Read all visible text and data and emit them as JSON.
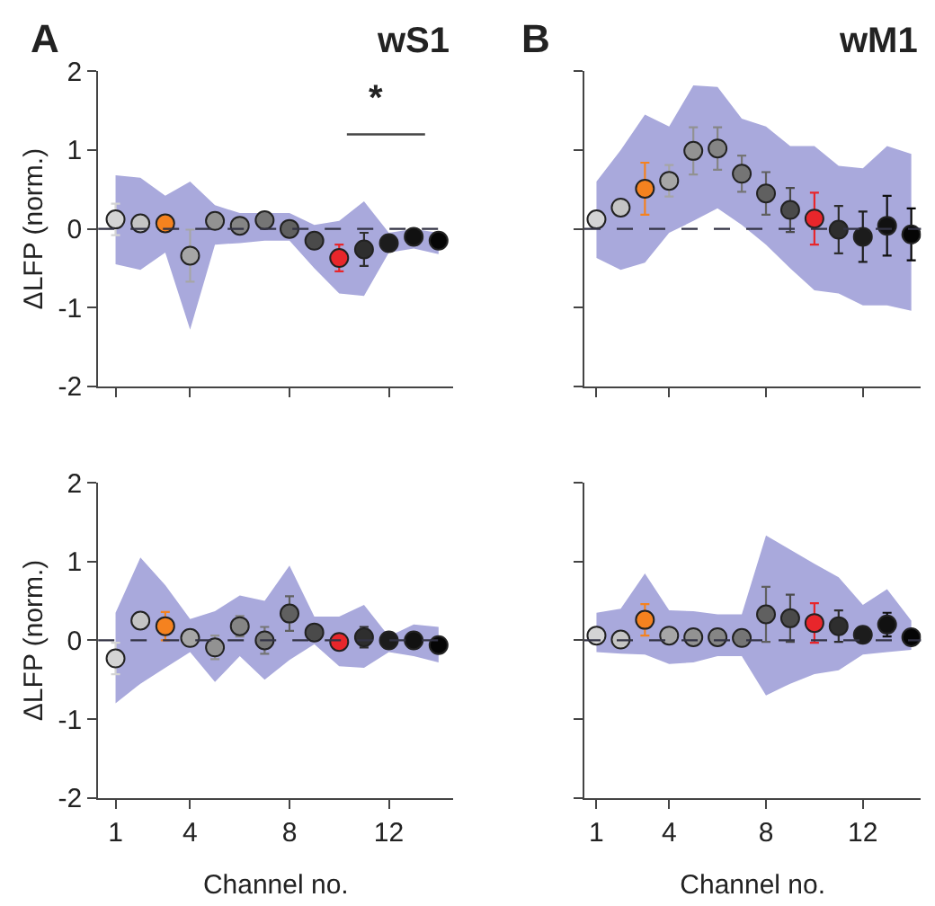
{
  "chart_data": [
    {
      "type": "scatter",
      "title": "wS1",
      "annotations": [
        "A",
        "*"
      ],
      "ylabel": "ΔLFP (norm.)",
      "x": [
        1,
        2,
        3,
        4,
        5,
        6,
        7,
        8,
        9,
        10,
        11,
        12,
        13,
        14
      ],
      "xlim": [
        0.3,
        14.6
      ],
      "xticks": [
        1,
        4,
        8,
        12
      ],
      "ylim": [
        -2,
        2
      ],
      "yticks": [
        -2,
        -1,
        0,
        1,
        2
      ],
      "tick_labels": "y",
      "marker": "circle",
      "ref_lines": [
        {
          "axis": "y",
          "value": 0,
          "line_style": "dashed",
          "color": "#333344"
        }
      ],
      "series": [
        {
          "color": "#a9a9dc",
          "colors": [
            "#d4d4d4",
            "#c4c4c4",
            "#f5821f",
            "#a6a6a6",
            "#929292",
            "#858585",
            "#757575",
            "#606060",
            "#4a4a4a",
            "#e8262b",
            "#2e2e2e",
            "#1c1c1c",
            "#111111",
            "#050505"
          ],
          "values": [
            0.12,
            0.07,
            0.07,
            -0.34,
            0.1,
            0.04,
            0.11,
            0.0,
            -0.15,
            -0.37,
            -0.26,
            -0.18,
            -0.1,
            -0.15
          ],
          "errors": [
            0.2,
            null,
            0.1,
            0.33,
            null,
            null,
            null,
            null,
            null,
            0.17,
            0.21,
            null,
            null,
            null
          ],
          "lower": [
            -0.45,
            -0.52,
            -0.3,
            -1.28,
            -0.2,
            -0.18,
            -0.15,
            -0.15,
            -0.5,
            -0.82,
            -0.85,
            -0.3,
            -0.25,
            -0.32
          ],
          "upper": [
            0.68,
            0.65,
            0.42,
            0.6,
            0.3,
            0.2,
            0.2,
            0.2,
            0.05,
            0.1,
            0.35,
            -0.05,
            0.0,
            -0.05
          ]
        }
      ]
    },
    {
      "type": "scatter",
      "title": "wM1",
      "annotations": [
        "B"
      ],
      "x": [
        1,
        2,
        3,
        4,
        5,
        6,
        7,
        8,
        9,
        10,
        11,
        12,
        13,
        14
      ],
      "xlim": [
        0.5,
        14.4
      ],
      "xticks": [
        1,
        4,
        8,
        12
      ],
      "ylim": [
        -2,
        2
      ],
      "yticks": [
        {
          "value": -2,
          "label": null
        },
        {
          "value": -1,
          "label": null
        },
        {
          "value": 0,
          "label": null
        },
        {
          "value": 1,
          "label": null
        },
        {
          "value": 2,
          "label": null
        }
      ],
      "tick_labels": false,
      "marker": "circle",
      "ref_lines": [
        {
          "axis": "y",
          "value": 0,
          "line_style": "dashed",
          "color": "#333344"
        }
      ],
      "series": [
        {
          "color": "#a9a9dc",
          "colors": [
            "#d4d4d4",
            "#c4c4c4",
            "#f5821f",
            "#a6a6a6",
            "#929292",
            "#858585",
            "#757575",
            "#606060",
            "#4a4a4a",
            "#e8262b",
            "#2e2e2e",
            "#1c1c1c",
            "#111111",
            "#050505"
          ],
          "values": [
            0.12,
            0.27,
            0.51,
            0.61,
            0.99,
            1.02,
            0.7,
            0.45,
            0.24,
            0.13,
            -0.01,
            -0.1,
            0.04,
            -0.07
          ],
          "errors": [
            0.1,
            0.1,
            0.33,
            0.2,
            0.3,
            0.27,
            0.23,
            0.27,
            0.28,
            0.33,
            0.3,
            0.32,
            0.38,
            0.33
          ],
          "lower": [
            -0.37,
            -0.52,
            -0.43,
            -0.05,
            0.1,
            0.26,
            0.05,
            -0.2,
            -0.5,
            -0.78,
            -0.82,
            -0.97,
            -0.97,
            -1.04
          ],
          "upper": [
            0.6,
            1.0,
            1.45,
            1.3,
            1.82,
            1.8,
            1.4,
            1.3,
            1.05,
            1.05,
            0.8,
            0.77,
            1.05,
            0.95
          ]
        }
      ]
    },
    {
      "type": "scatter",
      "xlabel": "Channel no.",
      "ylabel": "ΔLFP (norm.)",
      "x": [
        1,
        2,
        3,
        4,
        5,
        6,
        7,
        8,
        9,
        10,
        11,
        12,
        13,
        14
      ],
      "xlim": [
        0.3,
        14.6
      ],
      "xticks": [
        1,
        4,
        8,
        12
      ],
      "ylim": [
        -2,
        2
      ],
      "yticks": [
        -2,
        -1,
        0,
        1,
        2
      ],
      "marker": "circle",
      "ref_lines": [
        {
          "axis": "y",
          "value": 0,
          "line_style": "dashed",
          "color": "#333344"
        }
      ],
      "series": [
        {
          "color": "#a9a9dc",
          "colors": [
            "#d4d4d4",
            "#c4c4c4",
            "#f5821f",
            "#a6a6a6",
            "#929292",
            "#858585",
            "#757575",
            "#606060",
            "#4a4a4a",
            "#e8262b",
            "#2e2e2e",
            "#1c1c1c",
            "#111111",
            "#050505"
          ],
          "values": [
            -0.23,
            0.25,
            0.18,
            0.03,
            -0.09,
            0.18,
            0.0,
            0.34,
            0.1,
            -0.02,
            0.04,
            0.0,
            0.0,
            -0.06
          ],
          "errors": [
            0.2,
            null,
            0.18,
            null,
            0.15,
            0.13,
            0.17,
            0.22,
            null,
            0.1,
            0.13,
            null,
            null,
            null
          ],
          "lower": [
            -0.8,
            -0.55,
            -0.35,
            -0.15,
            -0.53,
            -0.2,
            -0.5,
            -0.25,
            -0.05,
            -0.33,
            -0.35,
            -0.15,
            -0.2,
            -0.28
          ],
          "upper": [
            0.35,
            1.05,
            0.7,
            0.27,
            0.37,
            0.57,
            0.5,
            0.95,
            0.3,
            0.3,
            0.45,
            0.05,
            0.2,
            0.17
          ]
        }
      ]
    },
    {
      "type": "scatter",
      "xlabel": "Channel no.",
      "x": [
        1,
        2,
        3,
        4,
        5,
        6,
        7,
        8,
        9,
        10,
        11,
        12,
        13,
        14
      ],
      "xlim": [
        0.5,
        14.4
      ],
      "xticks": [
        1,
        4,
        8,
        12
      ],
      "ylim": [
        -2,
        2
      ],
      "yticks": [
        {
          "value": -2,
          "label": null
        },
        {
          "value": -1,
          "label": null
        },
        {
          "value": 0,
          "label": null
        },
        {
          "value": 1,
          "label": null
        },
        {
          "value": 2,
          "label": null
        }
      ],
      "tick_labels": "x",
      "marker": "circle",
      "ref_lines": [
        {
          "axis": "y",
          "value": 0,
          "line_style": "dashed",
          "color": "#333344"
        }
      ],
      "series": [
        {
          "color": "#a9a9dc",
          "colors": [
            "#d4d4d4",
            "#c4c4c4",
            "#f5821f",
            "#a6a6a6",
            "#929292",
            "#858585",
            "#757575",
            "#606060",
            "#4a4a4a",
            "#e8262b",
            "#2e2e2e",
            "#1c1c1c",
            "#111111",
            "#050505"
          ],
          "values": [
            0.06,
            0.01,
            0.26,
            0.06,
            0.04,
            0.04,
            0.03,
            0.33,
            0.28,
            0.22,
            0.18,
            0.07,
            0.2,
            0.04
          ],
          "errors": [
            null,
            null,
            0.2,
            null,
            null,
            null,
            null,
            0.35,
            0.3,
            0.25,
            0.2,
            null,
            0.15,
            null
          ],
          "lower": [
            -0.15,
            -0.17,
            -0.18,
            -0.3,
            -0.28,
            -0.2,
            -0.2,
            -0.7,
            -0.55,
            -0.43,
            -0.38,
            -0.18,
            -0.15,
            -0.12
          ],
          "upper": [
            0.35,
            0.4,
            0.85,
            0.38,
            0.37,
            0.33,
            0.33,
            1.33,
            1.15,
            0.97,
            0.8,
            0.45,
            0.65,
            0.25
          ]
        }
      ]
    }
  ]
}
